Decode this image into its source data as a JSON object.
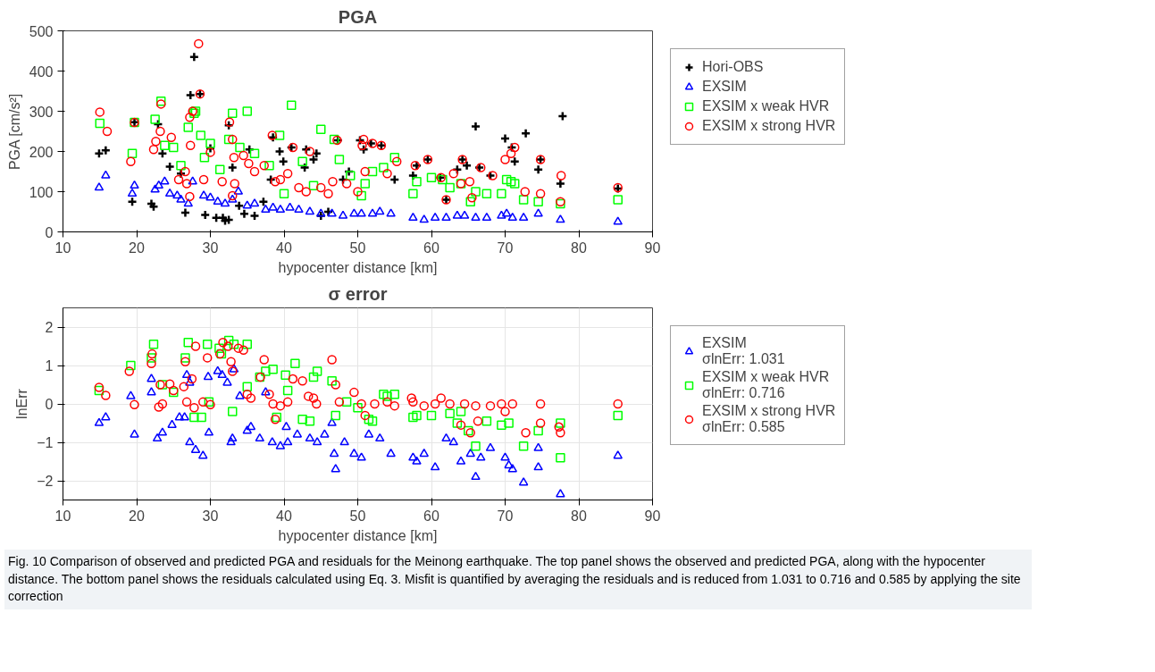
{
  "chart_data": [
    {
      "type": "scatter",
      "title": "PGA",
      "xlabel": "hypocenter distance [km]",
      "ylabel": "PGA [cm/s²]",
      "xlim": [
        10,
        90
      ],
      "xticks": [
        10,
        20,
        30,
        40,
        50,
        60,
        70,
        80,
        90
      ],
      "ylim": [
        0,
        500
      ],
      "yticks": [
        0,
        100,
        200,
        300,
        400,
        500
      ],
      "grid": false,
      "legend": "right",
      "series": [
        {
          "name": "Hori-OBS",
          "color": "#000000",
          "marker": "cross",
          "x": [
            14.9,
            15.8,
            19.4,
            19.7,
            22,
            22.3,
            22.9,
            23.5,
            24.5,
            26,
            26.6,
            27.3,
            27.8,
            28.6,
            29.3,
            30,
            30.8,
            31.7,
            32,
            32.5,
            32.5,
            33,
            33.9,
            34.6,
            35.3,
            36,
            37.2,
            38.2,
            38.5,
            39.4,
            39.9,
            41,
            42.8,
            43,
            44,
            44.4,
            45,
            46,
            47.3,
            48,
            48.8,
            50.3,
            50.8,
            51.8,
            53.2,
            55,
            57.5,
            58,
            59.5,
            61.2,
            62,
            63.5,
            64.2,
            64.8,
            66,
            66.5,
            68,
            70,
            70.9,
            71.3,
            72.8,
            74.5,
            74.8,
            77.5,
            77.8,
            85.3
          ],
          "values": [
            195,
            203,
            75,
            273,
            70,
            63,
            268,
            195,
            162,
            145,
            48,
            340,
            435,
            343,
            42,
            208,
            35,
            35,
            28,
            265,
            30,
            160,
            65,
            45,
            205,
            40,
            75,
            130,
            235,
            200,
            175,
            210,
            160,
            205,
            180,
            195,
            40,
            50,
            228,
            130,
            150,
            228,
            205,
            220,
            215,
            130,
            140,
            165,
            180,
            135,
            80,
            155,
            180,
            165,
            262,
            160,
            140,
            232,
            210,
            175,
            245,
            155,
            180,
            120,
            288,
            108
          ]
        },
        {
          "name": "EXSIM",
          "color": "#0000ff",
          "marker": "triangle",
          "x": [
            14.9,
            15.8,
            19.7,
            19.4,
            22.5,
            23,
            23.8,
            24.5,
            25.5,
            26,
            27,
            27.6,
            29.1,
            30,
            31,
            32,
            33,
            33.8,
            35,
            36,
            37.5,
            38.5,
            39.5,
            40.8,
            42,
            43.5,
            45,
            46.5,
            48,
            49.5,
            50.5,
            52,
            53,
            54.5,
            57.5,
            59,
            60.5,
            62,
            63.5,
            64.5,
            66,
            67.5,
            69.5,
            70.2,
            71,
            72.5,
            74.5,
            77.5,
            85.3
          ],
          "values": [
            110,
            140,
            115,
            95,
            105,
            115,
            125,
            95,
            90,
            80,
            70,
            125,
            90,
            85,
            75,
            70,
            80,
            100,
            65,
            70,
            55,
            60,
            55,
            60,
            55,
            50,
            45,
            45,
            40,
            45,
            45,
            45,
            50,
            45,
            35,
            30,
            35,
            35,
            40,
            40,
            35,
            35,
            40,
            45,
            35,
            35,
            45,
            30,
            25
          ]
        },
        {
          "name": "EXSIM x weak HVR",
          "color": "#00ff00",
          "marker": "square",
          "x": [
            15,
            19.4,
            19.7,
            22.5,
            23.3,
            23.8,
            25,
            26,
            27,
            27.8,
            28,
            28.7,
            29.2,
            30,
            31.3,
            32.5,
            33,
            34,
            35,
            36,
            38,
            39.4,
            40,
            41,
            42.5,
            44,
            45,
            46.8,
            47.5,
            49,
            50.5,
            51,
            52,
            53.5,
            55,
            57.5,
            58,
            60,
            61.5,
            62.5,
            64,
            65.3,
            66,
            67.5,
            69.5,
            70.2,
            70.8,
            71.3,
            72.5,
            74.5,
            77.5,
            85.3
          ],
          "values": [
            270,
            195,
            272,
            280,
            325,
            215,
            210,
            165,
            260,
            295,
            300,
            240,
            185,
            220,
            155,
            230,
            295,
            210,
            300,
            195,
            165,
            240,
            95,
            315,
            175,
            115,
            255,
            230,
            180,
            140,
            90,
            120,
            150,
            160,
            185,
            95,
            125,
            135,
            130,
            110,
            120,
            75,
            100,
            95,
            95,
            130,
            125,
            120,
            80,
            75,
            70,
            80
          ]
        },
        {
          "name": "EXSIM x strong HVR",
          "color": "#ff0000",
          "marker": "circle",
          "x": [
            15,
            16,
            19.2,
            19.7,
            22.3,
            22.6,
            23.3,
            23.2,
            24.7,
            25.7,
            26.6,
            26.8,
            27.2,
            27.2,
            27.6,
            27.3,
            28.6,
            28.4,
            29.1,
            30,
            31.6,
            32.6,
            33,
            33.2,
            33.3,
            33,
            34.5,
            35.2,
            36,
            37.3,
            38.4,
            38.8,
            39.5,
            40.5,
            41.2,
            42,
            43,
            43.5,
            45,
            46,
            46.6,
            47.2,
            48.5,
            50,
            50.6,
            50.8,
            51,
            52,
            53.2,
            54,
            55.3,
            57.8,
            59.5,
            61.3,
            62,
            63,
            64,
            64.2,
            65.2,
            65.5,
            66.7,
            68.3,
            70,
            70.8,
            71.3,
            72.7,
            74.8,
            74.8,
            77.6,
            77.5,
            85.3
          ],
          "values": [
            298,
            250,
            175,
            272,
            205,
            225,
            318,
            250,
            235,
            130,
            150,
            120,
            88,
            285,
            300,
            215,
            343,
            468,
            130,
            198,
            125,
            273,
            230,
            185,
            120,
            90,
            190,
            170,
            150,
            165,
            240,
            125,
            130,
            145,
            210,
            110,
            100,
            200,
            110,
            95,
            125,
            228,
            120,
            100,
            215,
            230,
            150,
            220,
            215,
            145,
            175,
            165,
            180,
            135,
            80,
            145,
            120,
            180,
            125,
            85,
            160,
            140,
            180,
            195,
            210,
            100,
            180,
            95,
            140,
            75,
            110
          ]
        }
      ]
    },
    {
      "type": "scatter",
      "title": "σ error",
      "xlabel": "hypocenter distance [km]",
      "ylabel": "lnErr",
      "xlim": [
        10,
        90
      ],
      "xticks": [
        10,
        20,
        30,
        40,
        50,
        60,
        70,
        80,
        90
      ],
      "ylim": [
        -2.5,
        2.5
      ],
      "yticks": [
        -2,
        -1,
        0,
        1,
        2
      ],
      "grid": true,
      "legend": "right",
      "annotations": [
        "Fig. 10 Comparison of observed and predicted PGA and residuals for the Meinong earthquake. The top panel shows the observed and predicted PGA, along with the hypocenter distance. The bottom panel shows the residuals calculated using Eq. 3. Misfit is quantified by averaging the residuals and is reduced from 1.031 to 0.716 and 0.585 by applying the site correction"
      ],
      "series": [
        {
          "name": "EXSIM\nσlnErr: 1.031",
          "color": "#0000ff",
          "marker": "triangle",
          "x": [
            14.9,
            15.8,
            19.2,
            19.7,
            22,
            22,
            22.8,
            23.5,
            24.8,
            25.8,
            26.5,
            26.8,
            27.2,
            27.2,
            28,
            29,
            29.8,
            29.7,
            31,
            31.6,
            32.3,
            32.8,
            33,
            33.2,
            34,
            35,
            35.5,
            36.7,
            37.5,
            38.4,
            39.5,
            40.3,
            40.5,
            41.8,
            43.5,
            44.5,
            45.5,
            46.5,
            46.8,
            47,
            48.2,
            49.5,
            50.5,
            51.5,
            53,
            54.5,
            57.5,
            58,
            59,
            60.5,
            62,
            63,
            64,
            65.3,
            66,
            66.7,
            68,
            70,
            70.5,
            71,
            72.5,
            74.5,
            74.5,
            77.5,
            85.3
          ],
          "values": [
            -0.5,
            -0.35,
            0.2,
            -0.8,
            0.3,
            0.65,
            -0.9,
            -0.75,
            -0.55,
            -0.35,
            -0.35,
            0.75,
            0.55,
            -1.0,
            -1.2,
            -1.35,
            -0.75,
            0.7,
            0.85,
            0.75,
            0.55,
            -1.0,
            -0.9,
            0.9,
            0.2,
            -0.7,
            -0.6,
            -0.9,
            0.3,
            -1.0,
            -1.1,
            -0.6,
            -1.0,
            -0.8,
            -0.9,
            -1.0,
            -0.8,
            -0.5,
            -1.3,
            -1.7,
            -1.0,
            -1.3,
            -1.4,
            -0.8,
            -0.9,
            -1.3,
            -1.4,
            -1.5,
            -1.3,
            -1.65,
            -0.9,
            -1.0,
            -1.5,
            -1.3,
            -1.9,
            -1.4,
            -1.15,
            -1.4,
            -1.6,
            -1.7,
            -2.05,
            -1.15,
            -1.65,
            -2.35,
            -1.35
          ]
        },
        {
          "name": "EXSIM x weak HVR\nσlnErr: 0.716",
          "color": "#00ff00",
          "marker": "square",
          "x": [
            14.9,
            19.2,
            22.3,
            22,
            23.5,
            25,
            26.6,
            27,
            27.8,
            28.8,
            29.6,
            29.8,
            31.2,
            31.5,
            32.5,
            33.2,
            33,
            35,
            35,
            36.7,
            37.5,
            38.5,
            39,
            40.2,
            40.5,
            41.5,
            42.5,
            43.5,
            44,
            44.5,
            46.5,
            47,
            48.5,
            50,
            51.5,
            52,
            53.5,
            54,
            55,
            57.5,
            58,
            60,
            62.5,
            63.5,
            64,
            65,
            66,
            67.5,
            69.5,
            70.5,
            72.5,
            74.5,
            77.5,
            77.5,
            85.3
          ],
          "values": [
            0.35,
            1.0,
            1.55,
            1.2,
            0.5,
            0.3,
            1.2,
            1.6,
            -0.35,
            -0.35,
            1.55,
            0.05,
            1.45,
            1.3,
            1.65,
            1.55,
            -0.2,
            1.55,
            0.45,
            0.7,
            0.85,
            0.9,
            -0.35,
            0.75,
            0.35,
            1.05,
            -0.4,
            -0.45,
            0.7,
            0.85,
            0.6,
            -0.3,
            0.05,
            -0.1,
            -0.4,
            -0.45,
            0.25,
            0.2,
            0.25,
            -0.35,
            -0.3,
            -0.3,
            -0.25,
            -0.5,
            -0.2,
            -0.7,
            -1.1,
            -0.45,
            -0.55,
            -0.5,
            -1.1,
            -0.7,
            -0.5,
            -1.4,
            -0.3
          ]
        },
        {
          "name": "EXSIM x strong HVR\nσlnErr: 0.585",
          "color": "#ff0000",
          "marker": "circle",
          "x": [
            14.9,
            15.8,
            19,
            19.7,
            22,
            22.1,
            23,
            23.5,
            23.2,
            24.5,
            25,
            26.4,
            26.6,
            26.8,
            27.5,
            27.8,
            28,
            29,
            29.6,
            30,
            31.3,
            31.7,
            32.4,
            32.8,
            33,
            33.8,
            34.5,
            35,
            35.5,
            36.8,
            37.3,
            38,
            38.5,
            38.8,
            39.5,
            40.5,
            41.2,
            42.5,
            43.3,
            44,
            44.4,
            46.5,
            47,
            47.5,
            49.5,
            50.5,
            51,
            52.3,
            54,
            55,
            57.3,
            57.5,
            59,
            60.5,
            61.3,
            62.5,
            64,
            64.5,
            65.3,
            66,
            66.3,
            68,
            69.5,
            70,
            71,
            72.8,
            74.8,
            74.8,
            77.3,
            77.5,
            85.3
          ],
          "values": [
            0.43,
            0.22,
            0.85,
            -0.02,
            1.05,
            1.3,
            -0.08,
            0.0,
            0.5,
            0.52,
            0.35,
            0.45,
            1.1,
            0.05,
            0.65,
            -0.1,
            1.5,
            0.05,
            1.2,
            -0.02,
            1.3,
            1.6,
            1.5,
            1.1,
            0.85,
            1.45,
            1.4,
            0.25,
            0.15,
            0.7,
            1.15,
            0.25,
            0.0,
            -0.4,
            -0.05,
            0.05,
            0.65,
            0.6,
            0.2,
            0.15,
            0.0,
            1.15,
            0.5,
            0.05,
            0.3,
            0.0,
            -0.3,
            0.0,
            0.05,
            -0.05,
            0.15,
            0.05,
            -0.05,
            0.0,
            0.15,
            0.0,
            -0.55,
            0.0,
            -0.75,
            -0.05,
            -0.45,
            -0.05,
            0.0,
            -0.2,
            0.0,
            -0.75,
            0.0,
            -0.5,
            -0.6,
            -0.75,
            0.0
          ]
        }
      ]
    }
  ]
}
